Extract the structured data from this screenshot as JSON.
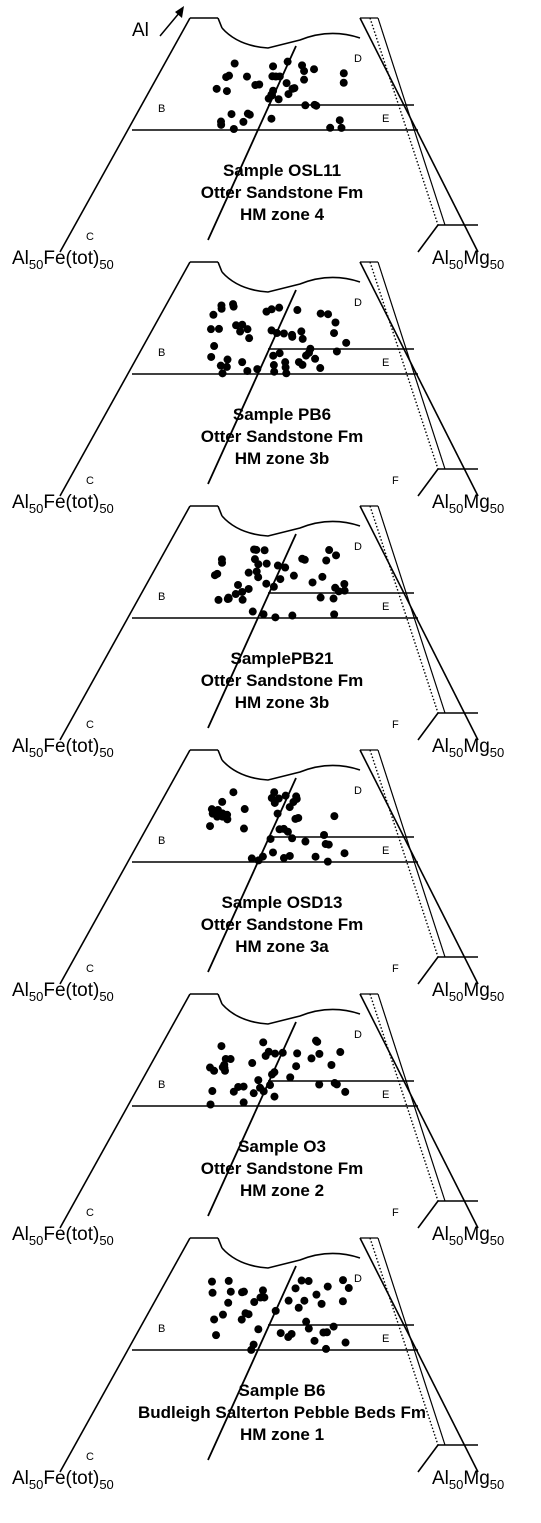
{
  "apex_label": "Al",
  "colors": {
    "ink": "#000000",
    "background": "#ffffff"
  },
  "corner_labels": {
    "left": {
      "base": "Al",
      "sub1": "50",
      "mid": "Fe(tot)",
      "sub2": "50"
    },
    "right": {
      "base": "Al",
      "sub1": "50",
      "mid": "Mg",
      "sub2": "50"
    }
  },
  "panels": [
    {
      "title_lines": [
        "Sample OSL11",
        "Otter Sandstone Fm",
        "HM zone 4"
      ],
      "fields": [
        "B",
        "C",
        "D",
        "E"
      ],
      "sample_count": 42
    },
    {
      "title_lines": [
        "Sample PB6",
        "Otter Sandstone Fm",
        "HM zone 3b"
      ],
      "fields": [
        "B",
        "C",
        "D",
        "E",
        "F"
      ],
      "sample_count": 52
    },
    {
      "title_lines": [
        "SamplePB21",
        "Otter Sandstone Fm",
        "HM zone 3b"
      ],
      "fields": [
        "B",
        "C",
        "D",
        "E",
        "F"
      ],
      "sample_count": 46
    },
    {
      "title_lines": [
        "Sample OSD13",
        "Otter Sandstone Fm",
        "HM zone 3a"
      ],
      "fields": [
        "B",
        "C",
        "D",
        "E",
        "F"
      ],
      "sample_count": 44
    },
    {
      "title_lines": [
        "Sample O3",
        "Otter Sandstone Fm",
        "HM zone 2"
      ],
      "fields": [
        "B",
        "C",
        "D",
        "E",
        "F"
      ],
      "sample_count": 42
    },
    {
      "title_lines": [
        "Sample B6",
        "Budleigh Salterton Pebble Beds Fm",
        "HM zone 1"
      ],
      "fields": [
        "B",
        "C",
        "D",
        "E"
      ],
      "sample_count": 44
    }
  ]
}
